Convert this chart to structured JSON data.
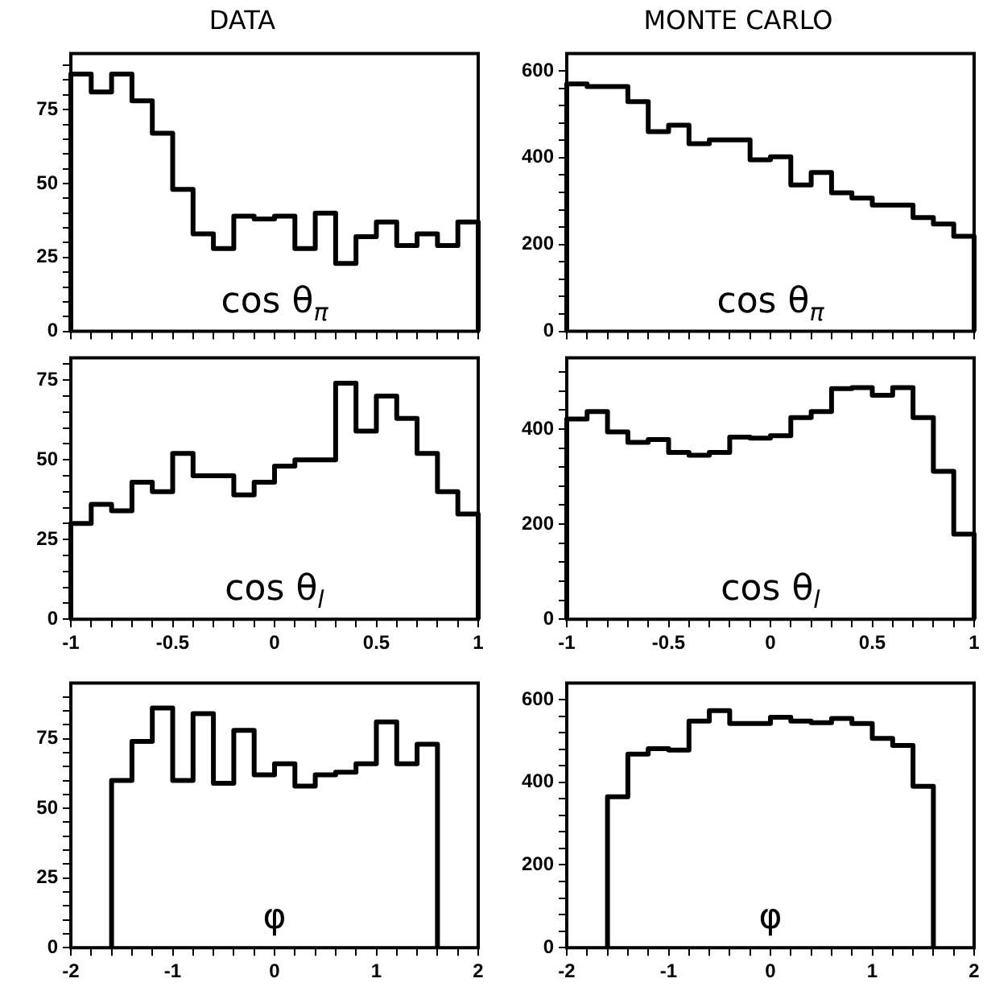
{
  "chart_data": [
    {
      "type": "histogram",
      "title": "DATA",
      "xlabel": "cos θ$_{π}$",
      "color": "#000000",
      "bins": [
        -1,
        -0.9,
        -0.8,
        -0.7,
        -0.6,
        -0.5,
        -0.4,
        -0.3,
        -0.2,
        -0.1,
        0,
        0.1,
        0.2,
        0.3,
        0.4,
        0.5,
        0.6,
        0.7,
        0.8,
        0.9,
        1
      ],
      "values": [
        87,
        81,
        87,
        78,
        67,
        48,
        33,
        28,
        39,
        38,
        39,
        28,
        40,
        23,
        32,
        37,
        29,
        33,
        29,
        37
      ],
      "xlim": [
        -1,
        1
      ],
      "xticks": [
        -1,
        {
          "value": -0.9,
          "label": null
        },
        {
          "value": -0.8,
          "label": null
        },
        {
          "value": -0.7,
          "label": null
        },
        {
          "value": -0.6,
          "label": null
        },
        -0.5,
        {
          "value": -0.4,
          "label": null
        },
        {
          "value": -0.3,
          "label": null
        },
        {
          "value": -0.2,
          "label": null
        },
        {
          "value": -0.1,
          "label": null
        },
        0,
        {
          "value": 0.1,
          "label": null
        },
        {
          "value": 0.2,
          "label": null
        },
        {
          "value": 0.3,
          "label": null
        },
        {
          "value": 0.4,
          "label": null
        },
        0.5,
        {
          "value": 0.6,
          "label": null
        },
        {
          "value": 0.7,
          "label": null
        },
        {
          "value": 0.8,
          "label": null
        },
        {
          "value": 0.9,
          "label": null
        },
        1
      ],
      "ylim": [
        0,
        94
      ],
      "yticks": [
        0,
        {
          "value": 5,
          "label": null
        },
        {
          "value": 10,
          "label": null
        },
        {
          "value": 15,
          "label": null
        },
        {
          "value": 20,
          "label": null
        },
        25,
        {
          "value": 30,
          "label": null
        },
        {
          "value": 35,
          "label": null
        },
        {
          "value": 40,
          "label": null
        },
        {
          "value": 45,
          "label": null
        },
        50,
        {
          "value": 55,
          "label": null
        },
        {
          "value": 60,
          "label": null
        },
        {
          "value": 65,
          "label": null
        },
        {
          "value": 70,
          "label": null
        },
        75,
        {
          "value": 80,
          "label": null
        },
        {
          "value": 85,
          "label": null
        },
        {
          "value": 90,
          "label": null
        }
      ],
      "tick_labels": "y"
    },
    {
      "type": "histogram",
      "title": "MONTE CARLO",
      "xlabel": "cos θ$_{π}$",
      "color": "#000000",
      "bins": [
        -1,
        -0.9,
        -0.8,
        -0.7,
        -0.6,
        -0.5,
        -0.4,
        -0.3,
        -0.2,
        -0.1,
        0,
        0.1,
        0.2,
        0.3,
        0.4,
        0.5,
        0.6,
        0.7,
        0.8,
        0.9,
        1
      ],
      "values": [
        570,
        564,
        564,
        529,
        460,
        475,
        432,
        441,
        441,
        395,
        402,
        337,
        366,
        319,
        307,
        291,
        291,
        262,
        247,
        219
      ],
      "xlim": [
        -1,
        1
      ],
      "xticks": [
        -1,
        {
          "value": -0.9,
          "label": null
        },
        {
          "value": -0.8,
          "label": null
        },
        {
          "value": -0.7,
          "label": null
        },
        {
          "value": -0.6,
          "label": null
        },
        -0.5,
        {
          "value": -0.4,
          "label": null
        },
        {
          "value": -0.3,
          "label": null
        },
        {
          "value": -0.2,
          "label": null
        },
        {
          "value": -0.1,
          "label": null
        },
        0,
        {
          "value": 0.1,
          "label": null
        },
        {
          "value": 0.2,
          "label": null
        },
        {
          "value": 0.3,
          "label": null
        },
        {
          "value": 0.4,
          "label": null
        },
        0.5,
        {
          "value": 0.6,
          "label": null
        },
        {
          "value": 0.7,
          "label": null
        },
        {
          "value": 0.8,
          "label": null
        },
        {
          "value": 0.9,
          "label": null
        },
        1
      ],
      "ylim": [
        0,
        640
      ],
      "yticks": [
        0,
        {
          "value": 40,
          "label": null
        },
        {
          "value": 80,
          "label": null
        },
        {
          "value": 120,
          "label": null
        },
        {
          "value": 160,
          "label": null
        },
        200,
        {
          "value": 240,
          "label": null
        },
        {
          "value": 280,
          "label": null
        },
        {
          "value": 320,
          "label": null
        },
        {
          "value": 360,
          "label": null
        },
        400,
        {
          "value": 440,
          "label": null
        },
        {
          "value": 480,
          "label": null
        },
        {
          "value": 520,
          "label": null
        },
        {
          "value": 560,
          "label": null
        },
        600
      ],
      "tick_labels": "y"
    },
    {
      "type": "histogram",
      "xlabel": "cos θ$_{l}$",
      "color": "#000000",
      "bins": [
        -1,
        -0.9,
        -0.8,
        -0.7,
        -0.6,
        -0.5,
        -0.4,
        -0.3,
        -0.2,
        -0.1,
        0,
        0.1,
        0.2,
        0.3,
        0.4,
        0.5,
        0.6,
        0.7,
        0.8,
        0.9,
        1
      ],
      "values": [
        30,
        36,
        34,
        43,
        40,
        52,
        45,
        45,
        39,
        43,
        48,
        50,
        50,
        74,
        59,
        70,
        63,
        52,
        40,
        33
      ],
      "xlim": [
        -1,
        1
      ],
      "xticks": [
        -1,
        {
          "value": -0.9,
          "label": null
        },
        {
          "value": -0.8,
          "label": null
        },
        {
          "value": -0.7,
          "label": null
        },
        {
          "value": -0.6,
          "label": null
        },
        -0.5,
        {
          "value": -0.4,
          "label": null
        },
        {
          "value": -0.3,
          "label": null
        },
        {
          "value": -0.2,
          "label": null
        },
        {
          "value": -0.1,
          "label": null
        },
        0,
        {
          "value": 0.1,
          "label": null
        },
        {
          "value": 0.2,
          "label": null
        },
        {
          "value": 0.3,
          "label": null
        },
        {
          "value": 0.4,
          "label": null
        },
        0.5,
        {
          "value": 0.6,
          "label": null
        },
        {
          "value": 0.7,
          "label": null
        },
        {
          "value": 0.8,
          "label": null
        },
        {
          "value": 0.9,
          "label": null
        },
        1
      ],
      "ylim": [
        0,
        82
      ],
      "yticks": [
        0,
        {
          "value": 5,
          "label": null
        },
        {
          "value": 10,
          "label": null
        },
        {
          "value": 15,
          "label": null
        },
        {
          "value": 20,
          "label": null
        },
        25,
        {
          "value": 30,
          "label": null
        },
        {
          "value": 35,
          "label": null
        },
        {
          "value": 40,
          "label": null
        },
        {
          "value": 45,
          "label": null
        },
        50,
        {
          "value": 55,
          "label": null
        },
        {
          "value": 60,
          "label": null
        },
        {
          "value": 65,
          "label": null
        },
        {
          "value": 70,
          "label": null
        },
        75,
        {
          "value": 80,
          "label": null
        }
      ]
    },
    {
      "type": "histogram",
      "xlabel": "cos θ$_{l}$",
      "color": "#000000",
      "bins": [
        -1,
        -0.9,
        -0.8,
        -0.7,
        -0.6,
        -0.5,
        -0.4,
        -0.3,
        -0.2,
        -0.1,
        0,
        0.1,
        0.2,
        0.3,
        0.4,
        0.5,
        0.6,
        0.7,
        0.8,
        0.9,
        1
      ],
      "values": [
        421,
        437,
        394,
        372,
        378,
        351,
        345,
        351,
        383,
        381,
        386,
        424,
        437,
        485,
        487,
        471,
        487,
        424,
        311,
        179
      ],
      "xlim": [
        -1,
        1
      ],
      "xticks": [
        -1,
        {
          "value": -0.9,
          "label": null
        },
        {
          "value": -0.8,
          "label": null
        },
        {
          "value": -0.7,
          "label": null
        },
        {
          "value": -0.6,
          "label": null
        },
        -0.5,
        {
          "value": -0.4,
          "label": null
        },
        {
          "value": -0.3,
          "label": null
        },
        {
          "value": -0.2,
          "label": null
        },
        {
          "value": -0.1,
          "label": null
        },
        0,
        {
          "value": 0.1,
          "label": null
        },
        {
          "value": 0.2,
          "label": null
        },
        {
          "value": 0.3,
          "label": null
        },
        {
          "value": 0.4,
          "label": null
        },
        0.5,
        {
          "value": 0.6,
          "label": null
        },
        {
          "value": 0.7,
          "label": null
        },
        {
          "value": 0.8,
          "label": null
        },
        {
          "value": 0.9,
          "label": null
        },
        1
      ],
      "ylim": [
        0,
        550
      ],
      "yticks": [
        0,
        {
          "value": 40,
          "label": null
        },
        {
          "value": 80,
          "label": null
        },
        {
          "value": 120,
          "label": null
        },
        {
          "value": 160,
          "label": null
        },
        200,
        {
          "value": 240,
          "label": null
        },
        {
          "value": 280,
          "label": null
        },
        {
          "value": 320,
          "label": null
        },
        {
          "value": 360,
          "label": null
        },
        400,
        {
          "value": 440,
          "label": null
        },
        {
          "value": 480,
          "label": null
        },
        {
          "value": 520,
          "label": null
        }
      ]
    },
    {
      "type": "histogram",
      "xlabel": "φ",
      "color": "#000000",
      "bins": [
        -1.6,
        -1.4,
        -1.2,
        -1,
        -0.8,
        -0.6,
        -0.4,
        -0.2,
        0,
        0.2,
        0.4,
        0.6,
        0.8,
        1,
        1.2,
        1.4,
        1.6
      ],
      "values": [
        60,
        74,
        86,
        60,
        84,
        59,
        78,
        62,
        66,
        58,
        62,
        63,
        66,
        81,
        66,
        73
      ],
      "xlim": [
        -2,
        2
      ],
      "xticks": [
        -2,
        {
          "value": -1.8,
          "label": null
        },
        {
          "value": -1.6,
          "label": null
        },
        {
          "value": -1.4,
          "label": null
        },
        {
          "value": -1.2,
          "label": null
        },
        -1,
        {
          "value": -0.8,
          "label": null
        },
        {
          "value": -0.6,
          "label": null
        },
        {
          "value": -0.4,
          "label": null
        },
        {
          "value": -0.2,
          "label": null
        },
        0,
        {
          "value": 0.2,
          "label": null
        },
        {
          "value": 0.4,
          "label": null
        },
        {
          "value": 0.6,
          "label": null
        },
        {
          "value": 0.8,
          "label": null
        },
        1,
        {
          "value": 1.2,
          "label": null
        },
        {
          "value": 1.4,
          "label": null
        },
        {
          "value": 1.6,
          "label": null
        },
        {
          "value": 1.8,
          "label": null
        },
        2
      ],
      "ylim": [
        0,
        95
      ],
      "yticks": [
        0,
        {
          "value": 5,
          "label": null
        },
        {
          "value": 10,
          "label": null
        },
        {
          "value": 15,
          "label": null
        },
        {
          "value": 20,
          "label": null
        },
        25,
        {
          "value": 30,
          "label": null
        },
        {
          "value": 35,
          "label": null
        },
        {
          "value": 40,
          "label": null
        },
        {
          "value": 45,
          "label": null
        },
        50,
        {
          "value": 55,
          "label": null
        },
        {
          "value": 60,
          "label": null
        },
        {
          "value": 65,
          "label": null
        },
        {
          "value": 70,
          "label": null
        },
        75,
        {
          "value": 80,
          "label": null
        },
        {
          "value": 85,
          "label": null
        },
        {
          "value": 90,
          "label": null
        }
      ]
    },
    {
      "type": "histogram",
      "xlabel": "φ",
      "color": "#000000",
      "bins": [
        -1.6,
        -1.4,
        -1.2,
        -1,
        -0.8,
        -0.6,
        -0.4,
        -0.2,
        0,
        0.2,
        0.4,
        0.6,
        0.8,
        1,
        1.2,
        1.4,
        1.6
      ],
      "values": [
        365,
        468,
        481,
        478,
        548,
        573,
        542,
        542,
        557,
        548,
        544,
        554,
        542,
        506,
        489,
        390
      ],
      "xlim": [
        -2,
        2
      ],
      "xticks": [
        -2,
        {
          "value": -1.8,
          "label": null
        },
        {
          "value": -1.6,
          "label": null
        },
        {
          "value": -1.4,
          "label": null
        },
        {
          "value": -1.2,
          "label": null
        },
        -1,
        {
          "value": -0.8,
          "label": null
        },
        {
          "value": -0.6,
          "label": null
        },
        {
          "value": -0.4,
          "label": null
        },
        {
          "value": -0.2,
          "label": null
        },
        0,
        {
          "value": 0.2,
          "label": null
        },
        {
          "value": 0.4,
          "label": null
        },
        {
          "value": 0.6,
          "label": null
        },
        {
          "value": 0.8,
          "label": null
        },
        1,
        {
          "value": 1.2,
          "label": null
        },
        {
          "value": 1.4,
          "label": null
        },
        {
          "value": 1.6,
          "label": null
        },
        {
          "value": 1.8,
          "label": null
        },
        2
      ],
      "ylim": [
        0,
        640
      ],
      "yticks": [
        0,
        {
          "value": 40,
          "label": null
        },
        {
          "value": 80,
          "label": null
        },
        {
          "value": 120,
          "label": null
        },
        {
          "value": 160,
          "label": null
        },
        200,
        {
          "value": 240,
          "label": null
        },
        {
          "value": 280,
          "label": null
        },
        {
          "value": 320,
          "label": null
        },
        {
          "value": 360,
          "label": null
        },
        400,
        {
          "value": 440,
          "label": null
        },
        {
          "value": 480,
          "label": null
        },
        {
          "value": 520,
          "label": null
        },
        {
          "value": 560,
          "label": null
        },
        600
      ]
    }
  ]
}
